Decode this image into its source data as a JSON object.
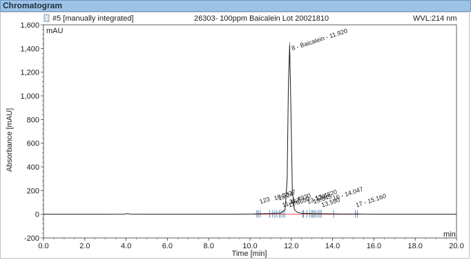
{
  "section": {
    "title": "Chromatogram"
  },
  "header": {
    "sample": "#5 [manually integrated]",
    "description": "26303- 100ppm Baicalein Lot 20021810",
    "wavelength": "WVL:214 nm"
  },
  "colors": {
    "header_bg": "#9dc3e6",
    "trace": "#1a1a1a",
    "baseline": "#e0302a",
    "peak_marker": "#3a6ea5"
  },
  "chart_data": {
    "type": "line",
    "title": "",
    "xlabel": "Time [min]",
    "ylabel": "Absorbance [mAU]",
    "y_unit_label": "mAU",
    "x_unit_label": "min",
    "xlim": [
      0.0,
      20.0
    ],
    "ylim": [
      -200,
      1600
    ],
    "x_ticks": [
      0.0,
      2.0,
      4.0,
      6.0,
      8.0,
      10.0,
      12.0,
      14.0,
      16.0,
      18.0,
      20.0
    ],
    "x_tick_labels": [
      "0.0",
      "2.0",
      "4.0",
      "6.0",
      "8.0",
      "10.0",
      "12.0",
      "14.0",
      "16.0",
      "18.0",
      "20.0"
    ],
    "y_ticks": [
      -200,
      0,
      200,
      400,
      600,
      800,
      1000,
      1200,
      1400,
      1600
    ],
    "y_tick_labels": [
      "-200",
      "0",
      "200",
      "400",
      "600",
      "800",
      "1,000",
      "1,200",
      "1,400",
      "1,600"
    ],
    "grid": false,
    "series": [
      {
        "x": [
          0.0,
          1.0,
          2.0,
          3.0,
          3.9,
          4.05,
          4.2,
          5.0,
          6.0,
          7.0,
          8.0,
          9.0,
          10.0,
          10.5,
          11.0,
          11.5,
          11.7,
          11.8,
          11.86,
          11.92,
          11.98,
          12.05,
          12.15,
          12.3,
          12.5,
          13.0,
          13.5,
          14.0,
          14.5,
          15.0,
          15.16,
          15.5,
          16.0,
          17.0,
          18.0,
          19.0,
          20.0
        ],
        "y": [
          0,
          0,
          0,
          0,
          1,
          6,
          1,
          0,
          0,
          0,
          0,
          0,
          2,
          4,
          6,
          10,
          40,
          300,
          1100,
          1430,
          900,
          200,
          40,
          15,
          8,
          5,
          4,
          3,
          2,
          2,
          3,
          1,
          0,
          0,
          0,
          0,
          0
        ]
      }
    ],
    "peak_labels": [
      {
        "x": 11.92,
        "y": 1430,
        "text": "8 - Baicalein - 11.920"
      },
      {
        "x": 10.5,
        "y": 0,
        "text": "123"
      },
      {
        "x": 11.2,
        "y": 0,
        "text": "10.3337"
      },
      {
        "x": 11.6,
        "y": 0,
        "text": "11.467"
      },
      {
        "x": 11.95,
        "y": 0,
        "text": "11.4930"
      },
      {
        "x": 11.4,
        "y": 0,
        "text": "15.24"
      },
      {
        "x": 11.9,
        "y": 0,
        "text": "11.6650"
      },
      {
        "x": 12.8,
        "y": 0,
        "text": "13.128"
      },
      {
        "x": 13.2,
        "y": 0,
        "text": "13.4820"
      },
      {
        "x": 13.5,
        "y": 0,
        "text": "13.550"
      },
      {
        "x": 13.1,
        "y": 0,
        "text": "13.045"
      },
      {
        "x": 14.05,
        "y": 0,
        "text": "16 - 14.047"
      },
      {
        "x": 15.16,
        "y": 0,
        "text": "17 - 15.160"
      }
    ],
    "markers_x": [
      10.33,
      10.4,
      10.5,
      10.95,
      11.1,
      11.2,
      11.3,
      11.42,
      11.5,
      11.6,
      11.68,
      12.55,
      12.6,
      12.75,
      12.9,
      13.0,
      13.05,
      13.12,
      13.2,
      13.3,
      13.38,
      13.45,
      14.05,
      15.1,
      15.2
    ]
  }
}
